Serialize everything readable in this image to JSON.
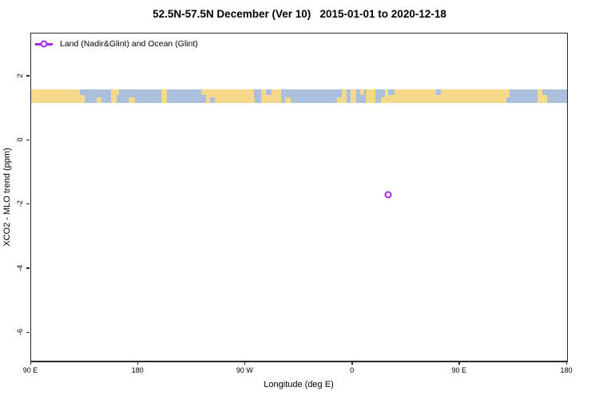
{
  "title": "52.5N-57.5N December (Ver 10)   2015-01-01 to 2020-12-18",
  "legend": {
    "label": "Land (Nadir&Glint) and Ocean (Glint)",
    "marker_color": "#A82AE8",
    "marker_shape": "open-circle-on-line"
  },
  "x_axis": {
    "label": "Longitude (deg E)",
    "ticks": [
      {
        "v": 90,
        "label": "90 E"
      },
      {
        "v": 180,
        "label": "180"
      },
      {
        "v": 270,
        "label": "90 W"
      },
      {
        "v": 360,
        "label": "0"
      },
      {
        "v": 450,
        "label": "90 E"
      },
      {
        "v": 540,
        "label": "180"
      }
    ]
  },
  "y_axis": {
    "label": "XCO2 - MLO trend (ppm)",
    "ticks": [
      {
        "v": 2,
        "label": "2"
      },
      {
        "v": 0,
        "label": "0"
      },
      {
        "v": -2,
        "label": "-2"
      },
      {
        "v": -4,
        "label": "-4"
      },
      {
        "v": -6,
        "label": "-6"
      }
    ]
  },
  "chart_data": {
    "type": "scatter",
    "title": "52.5N-57.5N December (Ver 10)   2015-01-01 to 2020-12-18",
    "xlabel": "Longitude (deg E)",
    "ylabel": "XCO2 - MLO trend (ppm)",
    "xlim": [
      90,
      540
    ],
    "ylim": [
      -6.9,
      3.35
    ],
    "grid": false,
    "legend_position": "top-left-inside",
    "series": [
      {
        "name": "Land (Nadir&Glint) and Ocean (Glint)",
        "marker": "open-circle",
        "color": "#A82AE8",
        "points": [
          {
            "x_axis_lon": 390,
            "longitude_deg_e": 30,
            "xco2_minus_mlo_trend_ppm": -1.7
          }
        ]
      }
    ],
    "map_band": {
      "description": "world land/ocean strip for latitude band 52.5N-57.5N drawn across plot",
      "value_top": 1.6,
      "value_bottom": 1.18,
      "land_color": "#F7D98C",
      "ocean_color": "#A9BFDC",
      "segments": [
        [
          90,
          135,
          "land"
        ],
        [
          135,
          157,
          "ocean"
        ],
        [
          157,
          162,
          "land"
        ],
        [
          162,
          199,
          "ocean"
        ],
        [
          199,
          204,
          "land"
        ],
        [
          204,
          237,
          "ocean"
        ],
        [
          237,
          277,
          "land"
        ],
        [
          277,
          283,
          "ocean"
        ],
        [
          283,
          300,
          "land"
        ],
        [
          300,
          351,
          "ocean"
        ],
        [
          351,
          355,
          "land"
        ],
        [
          355,
          358,
          "ocean"
        ],
        [
          358,
          363,
          "land"
        ],
        [
          363,
          371,
          "ocean"
        ],
        [
          371,
          379,
          "land"
        ],
        [
          379,
          387,
          "ocean"
        ],
        [
          387,
          492,
          "land"
        ],
        [
          492,
          515,
          "ocean"
        ],
        [
          515,
          523,
          "land"
        ],
        [
          523,
          540,
          "ocean"
        ]
      ],
      "coast_notches": [
        {
          "lon": 131,
          "w": 5,
          "type": "ocean",
          "edge": "top"
        },
        {
          "lon": 145,
          "w": 4,
          "type": "land",
          "edge": "bottom"
        },
        {
          "lon": 160,
          "w": 4,
          "type": "land",
          "edge": "top"
        },
        {
          "lon": 172,
          "w": 5,
          "type": "land",
          "edge": "bottom"
        },
        {
          "lon": 233,
          "w": 5,
          "type": "land",
          "edge": "top"
        },
        {
          "lon": 240,
          "w": 4,
          "type": "ocean",
          "edge": "bottom"
        },
        {
          "lon": 274,
          "w": 4,
          "type": "land",
          "edge": "bottom"
        },
        {
          "lon": 287,
          "w": 5,
          "type": "ocean",
          "edge": "top"
        },
        {
          "lon": 303,
          "w": 5,
          "type": "land",
          "edge": "bottom"
        },
        {
          "lon": 347,
          "w": 4,
          "type": "land",
          "edge": "bottom"
        },
        {
          "lon": 366,
          "w": 4,
          "type": "land",
          "edge": "top"
        },
        {
          "lon": 384,
          "w": 4,
          "type": "land",
          "edge": "bottom"
        },
        {
          "lon": 390,
          "w": 5,
          "type": "ocean",
          "edge": "top"
        },
        {
          "lon": 430,
          "w": 4,
          "type": "ocean",
          "edge": "top"
        },
        {
          "lon": 489,
          "w": 5,
          "type": "ocean",
          "edge": "bottom"
        },
        {
          "lon": 519,
          "w": 4,
          "type": "ocean",
          "edge": "top"
        }
      ]
    }
  }
}
